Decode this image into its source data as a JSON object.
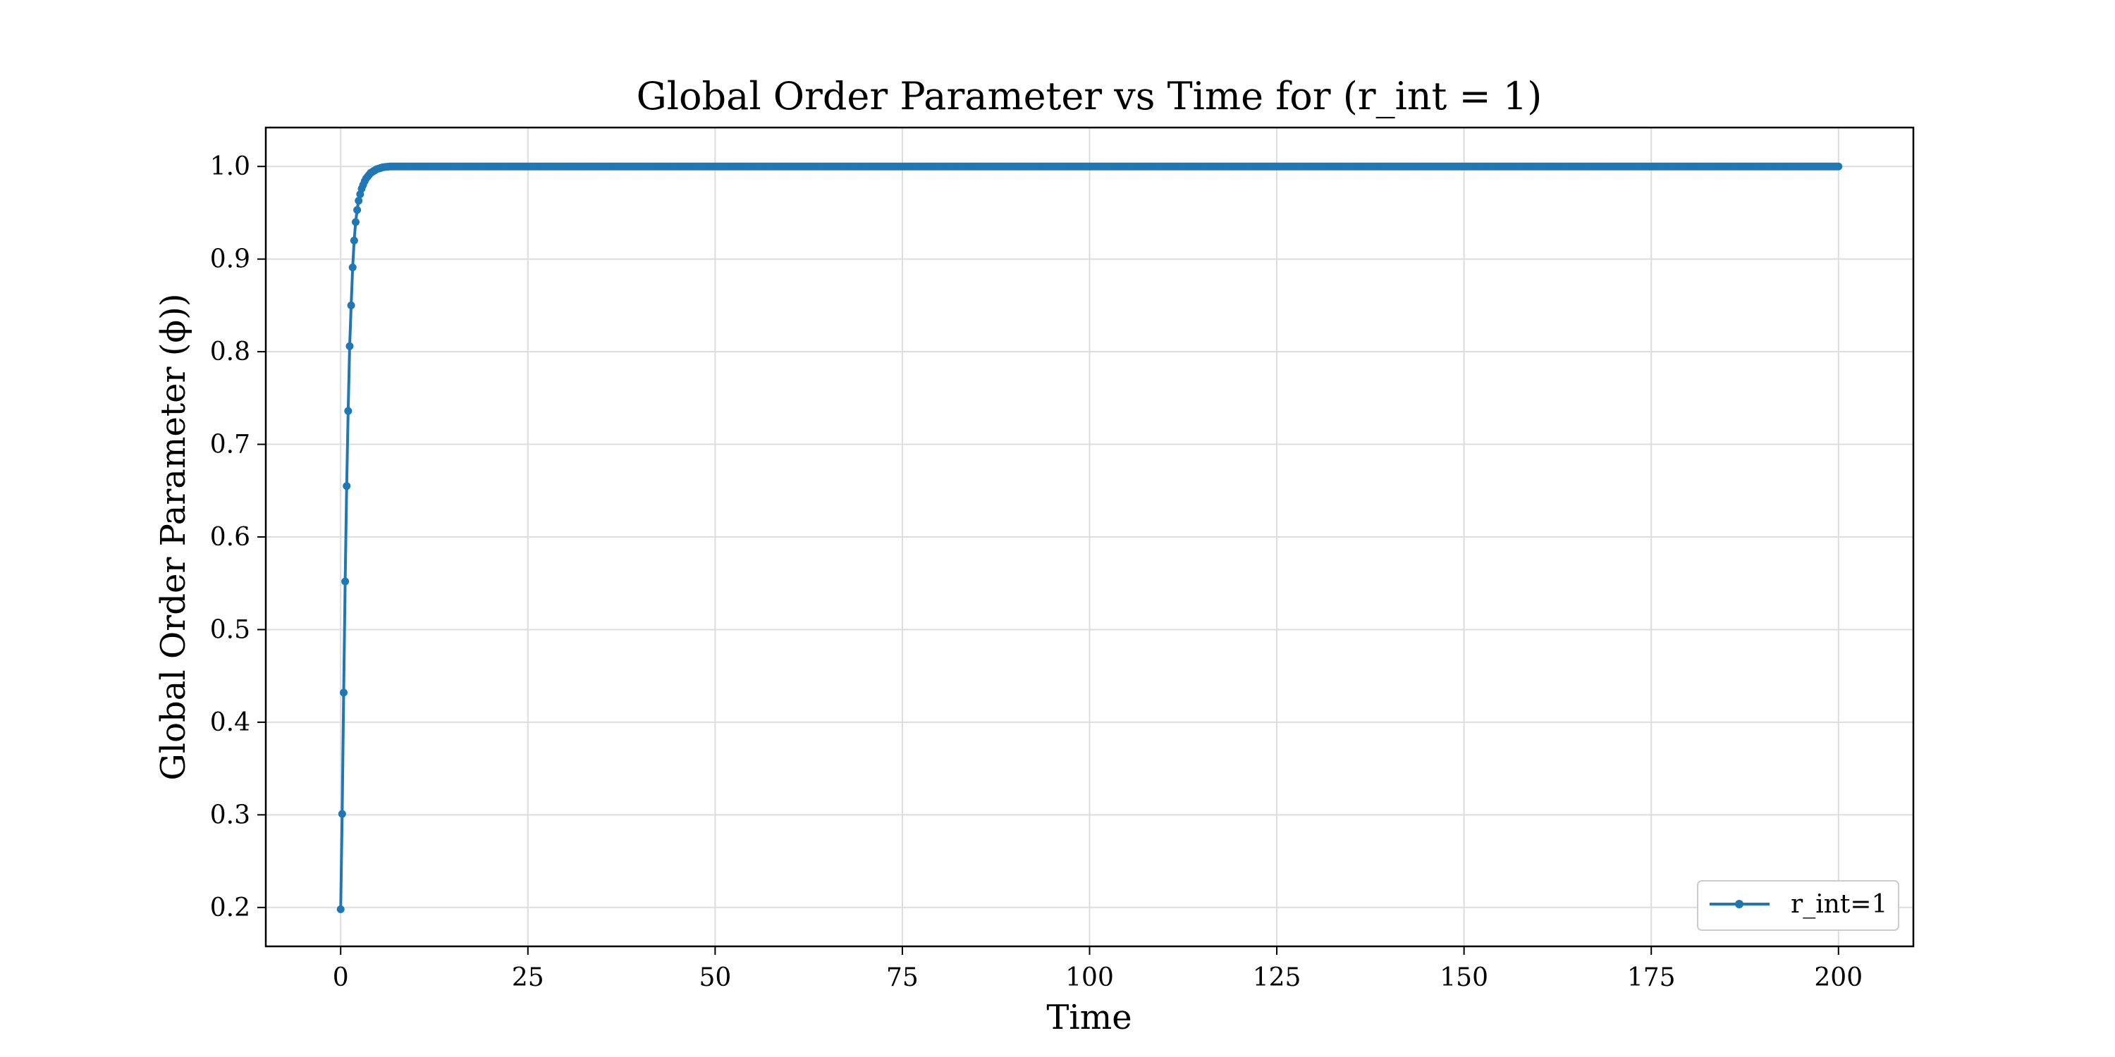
{
  "colors": {
    "series": "#1f77b4",
    "grid": "#dddddd",
    "frame": "#000000",
    "background": "#ffffff"
  },
  "chart_data": {
    "type": "line",
    "title": "Global Order Parameter vs Time for (r_int = 1)",
    "xlabel": "Time",
    "ylabel": "Global Order Parameter (ϕ))",
    "xlim": [
      -10,
      210
    ],
    "ylim": [
      0.158,
      1.042
    ],
    "grid": true,
    "legend_position": "lower-right",
    "xticks": [
      0,
      25,
      50,
      75,
      100,
      125,
      150,
      175,
      200
    ],
    "xtick_labels": [
      "0",
      "25",
      "50",
      "75",
      "100",
      "125",
      "150",
      "175",
      "200"
    ],
    "yticks": [
      0.2,
      0.3,
      0.4,
      0.5,
      0.6,
      0.7,
      0.8,
      0.9,
      1.0
    ],
    "ytick_labels": [
      "0.2",
      "0.3",
      "0.4",
      "0.5",
      "0.6",
      "0.7",
      "0.8",
      "0.9",
      "1.0"
    ],
    "series": [
      {
        "name": "r_int=1",
        "marker": "circle",
        "note_sampling": "points every 0.2 time units from 0 to 200; curve is a rapid rise then saturates at 1.0",
        "x_start": 0,
        "x_end": 200,
        "x_step": 0.2,
        "y_early": [
          0.198,
          0.301,
          0.432,
          0.552,
          0.655,
          0.736,
          0.806,
          0.85,
          0.891,
          0.92,
          0.94,
          0.953,
          0.963,
          0.97,
          0.976,
          0.98,
          0.984,
          0.987,
          0.989,
          0.991,
          0.993,
          0.994,
          0.995,
          0.996,
          0.997,
          0.9975,
          0.998,
          0.9985,
          0.999,
          0.9993,
          0.9995,
          0.9997,
          0.9998
        ],
        "y_plateau": 1.0
      }
    ]
  }
}
